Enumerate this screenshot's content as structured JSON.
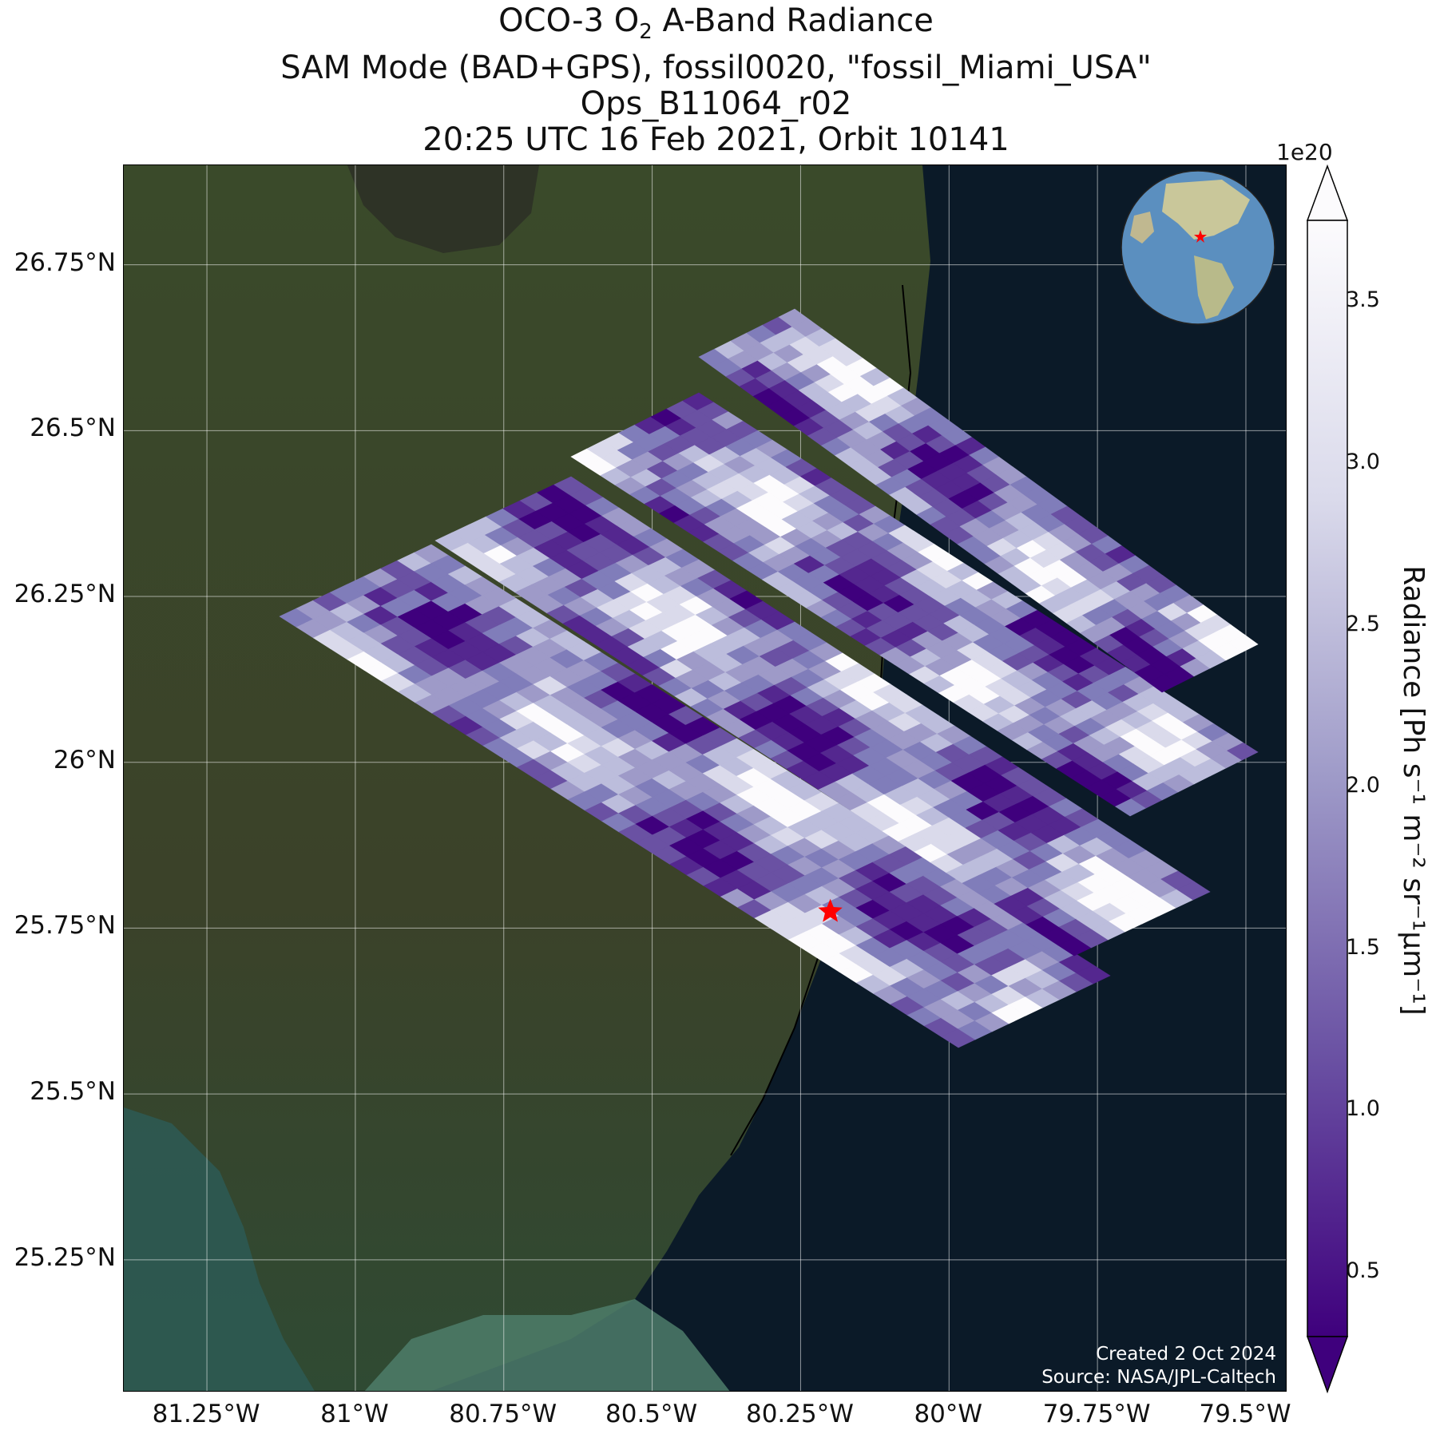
{
  "title": {
    "line1_main": "OCO-3 O",
    "line1_sub": "2",
    "line1_rest": " A-Band Radiance",
    "line2": "SAM Mode (BAD+GPS), fossil0020, \"fossil_Miami_USA\"",
    "line3": "Ops_B11064_r02",
    "line4": "20:25 UTC 16 Feb 2021, Orbit 10141"
  },
  "map": {
    "lat_ticks": [
      "26.75°N",
      "26.5°N",
      "26.25°N",
      "26°N",
      "25.75°N",
      "25.5°N",
      "25.25°N"
    ],
    "lon_ticks": [
      "81.25°W",
      "81°W",
      "80.75°W",
      "80.5°W",
      "80.25°W",
      "80°W",
      "79.75°W",
      "79.5°W"
    ],
    "lat_range": [
      25.05,
      26.9
    ],
    "lon_range": [
      -81.39,
      -79.43
    ],
    "target": {
      "lat": 25.775,
      "lon": -80.2,
      "marker": "red-star-icon"
    },
    "gridlines": true,
    "background": "satellite-imagery"
  },
  "inset": {
    "type": "globe",
    "marker": "red-star-icon"
  },
  "colorbar": {
    "exponent": "1e20",
    "ticks": [
      "3.5",
      "3.0",
      "2.5",
      "2.0",
      "1.5",
      "1.0",
      "0.5"
    ],
    "range": [
      0.3,
      3.75
    ],
    "colormap": "Purples_r",
    "label": "Radiance [Ph s⁻¹ m⁻² sr⁻¹μm⁻¹]",
    "extend": "both"
  },
  "credit": {
    "line1": "Created 2 Oct 2024",
    "line2": "Source: NASA/JPL-Caltech"
  },
  "colors": {
    "dark": "#3f007d",
    "mid": "#6a51a3",
    "light": "#bcbddc",
    "white": "#fcfbfd",
    "ocean": "#0b1a28",
    "target": "#ff0000"
  }
}
